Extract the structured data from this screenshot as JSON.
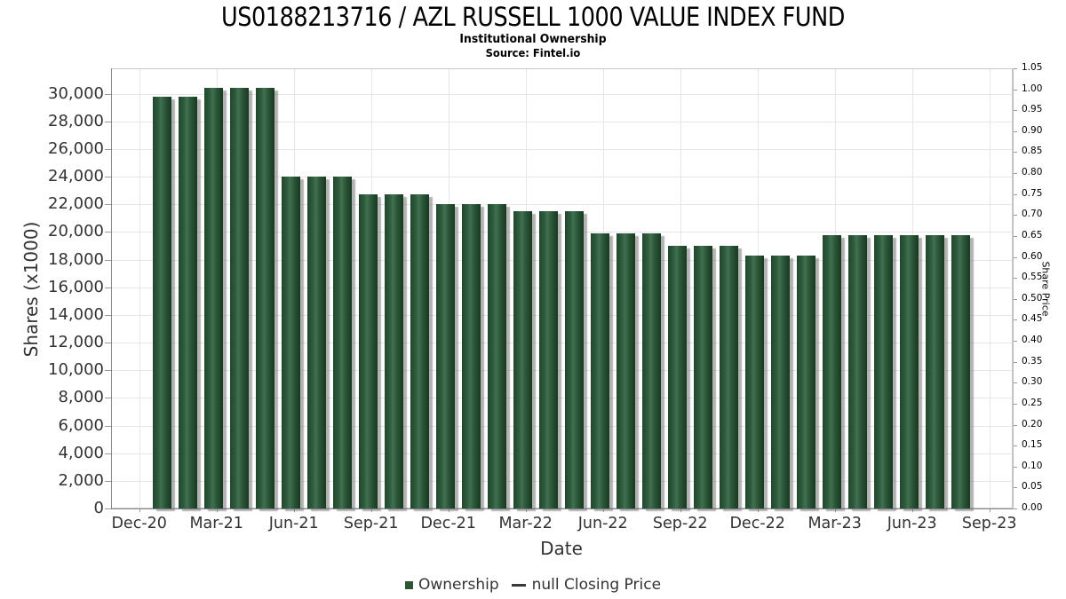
{
  "header": {
    "title": "US0188213716 / AZL RUSSELL 1000 VALUE INDEX FUND",
    "subtitle": "Institutional Ownership",
    "source": "Source: Fintel.io"
  },
  "legend": {
    "ownership_label": "Ownership",
    "price_label": "null Closing Price"
  },
  "chart_data": {
    "type": "bar",
    "title": "US0188213716 / AZL RUSSELL 1000 VALUE INDEX FUND",
    "subtitle": "Institutional Ownership",
    "source": "Source: Fintel.io",
    "xlabel": "Date",
    "ylabel": "Shares (x1000)",
    "y2label": "Share Price",
    "grid": true,
    "legend_position": "bottom",
    "x": [
      "Jan-21",
      "Feb-21",
      "Mar-21",
      "Apr-21",
      "May-21",
      "Jun-21",
      "Jul-21",
      "Aug-21",
      "Sep-21",
      "Oct-21",
      "Nov-21",
      "Dec-21",
      "Jan-22",
      "Feb-22",
      "Mar-22",
      "Apr-22",
      "May-22",
      "Jun-22",
      "Jul-22",
      "Aug-22",
      "Sep-22",
      "Oct-22",
      "Nov-22",
      "Dec-22",
      "Jan-23",
      "Feb-23",
      "Mar-23",
      "Apr-23",
      "May-23",
      "Jun-23",
      "Jul-23",
      "Aug-23"
    ],
    "series": [
      {
        "name": "Ownership",
        "values": [
          29800,
          29800,
          30400,
          30400,
          30400,
          24000,
          24000,
          24000,
          22700,
          22700,
          22700,
          22000,
          22000,
          22000,
          21500,
          21500,
          21500,
          19900,
          19900,
          19900,
          19000,
          19000,
          19000,
          18300,
          18300,
          18300,
          19800,
          19800,
          19800,
          19800,
          19800,
          19800
        ]
      }
    ],
    "x_ticks": [
      "Dec-20",
      "Mar-21",
      "Jun-21",
      "Sep-21",
      "Dec-21",
      "Mar-22",
      "Jun-22",
      "Sep-22",
      "Dec-22",
      "Mar-23",
      "Jun-23",
      "Sep-23"
    ],
    "y_left_tick_labels": [
      "0",
      "2,000",
      "4,000",
      "6,000",
      "8,000",
      "10,000",
      "12,000",
      "14,000",
      "16,000",
      "18,000",
      "20,000",
      "22,000",
      "24,000",
      "26,000",
      "28,000",
      "30,000"
    ],
    "y_left_tick_values": [
      0,
      2000,
      4000,
      6000,
      8000,
      10000,
      12000,
      14000,
      16000,
      18000,
      20000,
      22000,
      24000,
      26000,
      28000,
      30000
    ],
    "y_right_tick_labels": [
      "0.00",
      "0.05",
      "0.10",
      "0.15",
      "0.20",
      "0.25",
      "0.30",
      "0.35",
      "0.40",
      "0.45",
      "0.50",
      "0.55",
      "0.60",
      "0.65",
      "0.70",
      "0.75",
      "0.80",
      "0.85",
      "0.90",
      "0.95",
      "1.00",
      "1.05"
    ],
    "ylim_left": [
      0,
      31840
    ],
    "ylim_right": [
      0,
      1.05
    ],
    "colors": {
      "bar": "#2c5636",
      "grid": "#e6e6e6",
      "axis": "#8a8a8a",
      "tick_text": "#333333",
      "title_text": "#000000"
    }
  }
}
